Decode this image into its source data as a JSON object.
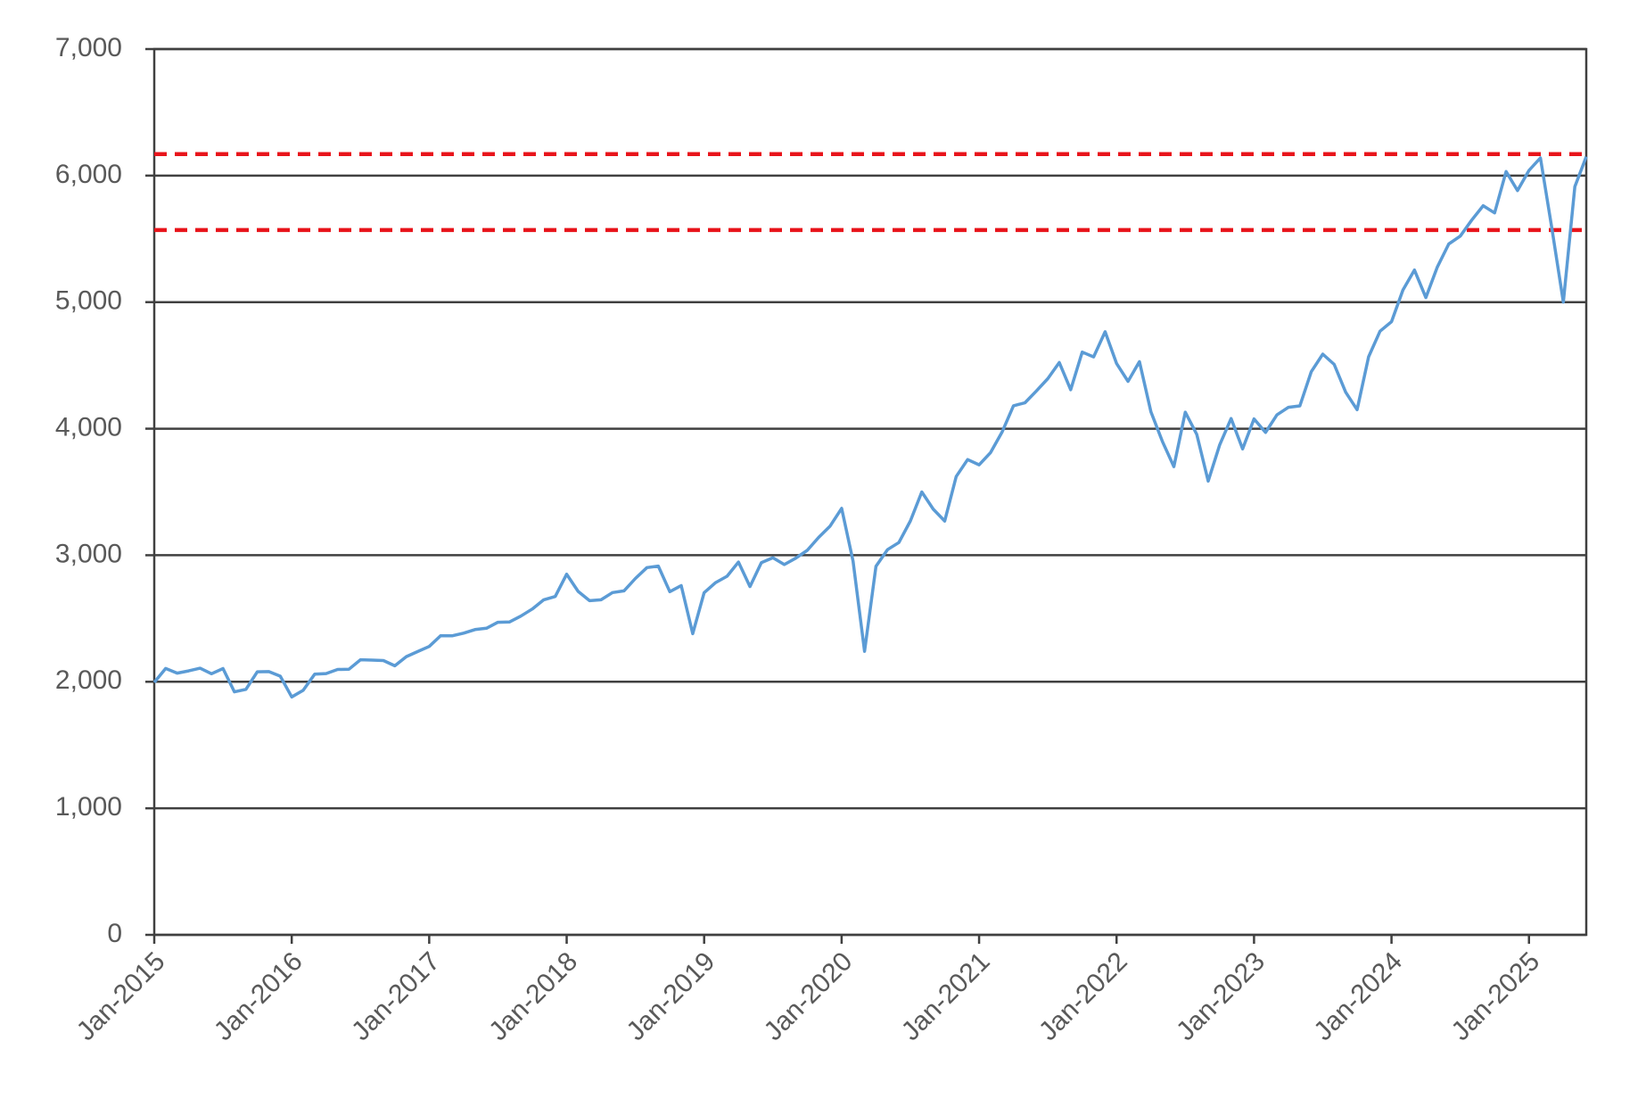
{
  "chart_data": {
    "type": "line",
    "x": [
      "Jan-2015",
      "Feb-2015",
      "Mar-2015",
      "Apr-2015",
      "May-2015",
      "Jun-2015",
      "Jul-2015",
      "Aug-2015",
      "Sep-2015",
      "Oct-2015",
      "Nov-2015",
      "Dec-2015",
      "Jan-2016",
      "Feb-2016",
      "Mar-2016",
      "Apr-2016",
      "May-2016",
      "Jun-2016",
      "Jul-2016",
      "Aug-2016",
      "Sep-2016",
      "Oct-2016",
      "Nov-2016",
      "Dec-2016",
      "Jan-2017",
      "Feb-2017",
      "Mar-2017",
      "Apr-2017",
      "May-2017",
      "Jun-2017",
      "Jul-2017",
      "Aug-2017",
      "Sep-2017",
      "Oct-2017",
      "Nov-2017",
      "Dec-2017",
      "Jan-2018",
      "Feb-2018",
      "Mar-2018",
      "Apr-2018",
      "May-2018",
      "Jun-2018",
      "Jul-2018",
      "Aug-2018",
      "Sep-2018",
      "Oct-2018",
      "Nov-2018",
      "Dec-2018",
      "Jan-2019",
      "Feb-2019",
      "Mar-2019",
      "Apr-2019",
      "May-2019",
      "Jun-2019",
      "Jul-2019",
      "Aug-2019",
      "Sep-2019",
      "Oct-2019",
      "Nov-2019",
      "Dec-2019",
      "Jan-2020",
      "Feb-2020",
      "Mar-2020",
      "Apr-2020",
      "May-2020",
      "Jun-2020",
      "Jul-2020",
      "Aug-2020",
      "Sep-2020",
      "Oct-2020",
      "Nov-2020",
      "Dec-2020",
      "Jan-2021",
      "Feb-2021",
      "Mar-2021",
      "Apr-2021",
      "May-2021",
      "Jun-2021",
      "Jul-2021",
      "Aug-2021",
      "Sep-2021",
      "Oct-2021",
      "Nov-2021",
      "Dec-2021",
      "Jan-2022",
      "Feb-2022",
      "Mar-2022",
      "Apr-2022",
      "May-2022",
      "Jun-2022",
      "Jul-2022",
      "Aug-2022",
      "Sep-2022",
      "Oct-2022",
      "Nov-2022",
      "Dec-2022",
      "Jan-2023",
      "Feb-2023",
      "Mar-2023",
      "Apr-2023",
      "May-2023",
      "Jun-2023",
      "Jul-2023",
      "Aug-2023",
      "Sep-2023",
      "Oct-2023",
      "Nov-2023",
      "Dec-2023",
      "Jan-2024",
      "Feb-2024",
      "Mar-2024",
      "Apr-2024",
      "May-2024",
      "Jun-2024",
      "Jul-2024",
      "Aug-2024",
      "Sep-2024",
      "Oct-2024",
      "Nov-2024",
      "Dec-2024",
      "Jan-2025",
      "Feb-2025",
      "Mar-2025",
      "Apr-2025",
      "May-2025",
      "Jun-2025"
    ],
    "values": [
      1995,
      2105,
      2068,
      2086,
      2107,
      2063,
      2104,
      1920,
      1940,
      2079,
      2080,
      2044,
      1880,
      1932,
      2060,
      2065,
      2097,
      2099,
      2174,
      2171,
      2168,
      2126,
      2199,
      2239,
      2279,
      2364,
      2363,
      2384,
      2412,
      2423,
      2470,
      2472,
      2519,
      2575,
      2648,
      2674,
      2850,
      2714,
      2641,
      2648,
      2705,
      2718,
      2816,
      2902,
      2914,
      2712,
      2760,
      2380,
      2704,
      2784,
      2834,
      2946,
      2752,
      2942,
      2980,
      2926,
      2977,
      3038,
      3141,
      3231,
      3370,
      2954,
      2240,
      2912,
      3044,
      3100,
      3271,
      3500,
      3363,
      3270,
      3622,
      3756,
      3714,
      3811,
      3973,
      4181,
      4204,
      4298,
      4395,
      4523,
      4308,
      4605,
      4567,
      4766,
      4516,
      4374,
      4530,
      4132,
      3900,
      3700,
      4130,
      3955,
      3586,
      3872,
      4080,
      3840,
      4077,
      3970,
      4109,
      4169,
      4180,
      4450,
      4589,
      4508,
      4288,
      4150,
      4568,
      4770,
      4846,
      5096,
      5254,
      5036,
      5278,
      5460,
      5522,
      5648,
      5762,
      5705,
      6032,
      5882,
      6041,
      6140,
      5580,
      5000,
      5912,
      6150
    ],
    "color": "#5b9bd5",
    "xticks": [
      "Jan-2015",
      "Jan-2016",
      "Jan-2017",
      "Jan-2018",
      "Jan-2019",
      "Jan-2020",
      "Jan-2021",
      "Jan-2022",
      "Jan-2023",
      "Jan-2024",
      "Jan-2025"
    ],
    "ylim": [
      0,
      7000
    ],
    "yticks": [
      0,
      {
        "value": 1000,
        "label": "1,000"
      },
      {
        "value": 2000,
        "label": "2,000"
      },
      {
        "value": 3000,
        "label": "3,000"
      },
      {
        "value": 4000,
        "label": "4,000"
      },
      {
        "value": 5000,
        "label": "5,000"
      },
      {
        "value": 6000,
        "label": "6,000"
      },
      {
        "value": 7000,
        "label": "7,000"
      }
    ],
    "grid": true,
    "reference_lines": [
      {
        "value": 6170,
        "color": "#e8141b"
      },
      {
        "value": 5570,
        "color": "#e8141b"
      }
    ]
  }
}
